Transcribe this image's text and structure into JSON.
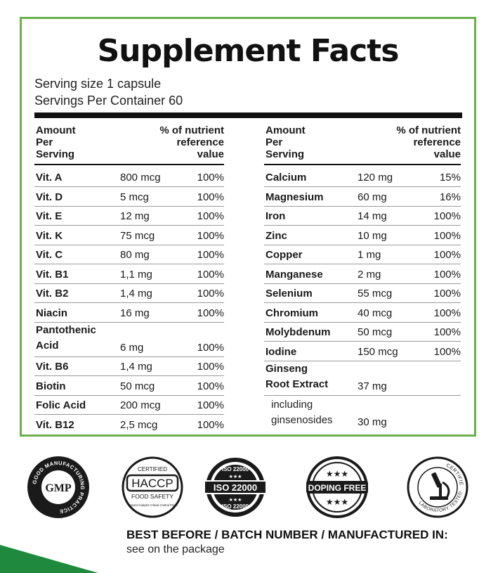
{
  "title": "Supplement Facts",
  "serving_size": "Serving size 1 capsule",
  "servings_per_container": "Servings Per Container 60",
  "header": {
    "amount": [
      "Amount",
      "Per",
      "Serving"
    ],
    "percent": [
      "% of nutrient",
      "reference",
      "value"
    ]
  },
  "left_rows": [
    {
      "name": "Vit. A",
      "amount": "800 mcg",
      "percent": "100%"
    },
    {
      "name": "Vit. D",
      "amount": "5 mcg",
      "percent": "100%"
    },
    {
      "name": "Vit. E",
      "amount": "12 mg",
      "percent": "100%"
    },
    {
      "name": "Vit. K",
      "amount": "75 mcg",
      "percent": "100%"
    },
    {
      "name": "Vit. C",
      "amount": "80 mg",
      "percent": "100%"
    },
    {
      "name": "Vit. B1",
      "amount": "1,1 mg",
      "percent": "100%"
    },
    {
      "name": "Vit. B2",
      "amount": "1,4 mg",
      "percent": "100%"
    },
    {
      "name": "Niacin",
      "amount": "16 mg",
      "percent": "100%"
    },
    {
      "name_line1": "Pantothenic",
      "name_line2": "Acid",
      "amount": "6 mg",
      "percent": "100%"
    },
    {
      "name": "Vit. B6",
      "amount": "1,4 mg",
      "percent": "100%"
    },
    {
      "name": "Biotin",
      "amount": "50 mcg",
      "percent": "100%"
    },
    {
      "name": "Folic Acid",
      "amount": "200 mcg",
      "percent": "100%"
    },
    {
      "name": "Vit. B12",
      "amount": "2,5 mcg",
      "percent": "100%"
    }
  ],
  "right_rows": [
    {
      "name": "Calcium",
      "amount": "120 mg",
      "percent": "15%"
    },
    {
      "name": "Magnesium",
      "amount": "60 mg",
      "percent": "16%"
    },
    {
      "name": "Iron",
      "amount": "14 mg",
      "percent": "100%"
    },
    {
      "name": "Zinc",
      "amount": "10 mg",
      "percent": "100%"
    },
    {
      "name": "Copper",
      "amount": "1 mg",
      "percent": "100%"
    },
    {
      "name": "Manganese",
      "amount": "2 mg",
      "percent": "100%"
    },
    {
      "name": "Selenium",
      "amount": "55 mcg",
      "percent": "100%"
    },
    {
      "name": "Chromium",
      "amount": "40 mcg",
      "percent": "100%"
    },
    {
      "name": "Molybdenum",
      "amount": "50 mcg",
      "percent": "100%"
    },
    {
      "name": "Iodine",
      "amount": "150 mcg",
      "percent": "100%"
    },
    {
      "name_line1": "Ginseng",
      "name_line2": "Root Extract",
      "amount": "37 mg",
      "percent": ""
    }
  ],
  "ginsenosides": {
    "line1": "including",
    "line2": "ginsenosides",
    "amount": "30 mg"
  },
  "badges": {
    "gmp": {
      "center": "GMP",
      "ring": "GOOD MANUFACTURING PRACTICE"
    },
    "haccp": {
      "top": "CERTIFIED",
      "main": "HACCP",
      "sub": "FOOD SAFETY",
      "ring": "Hazard Analysis Critical Control Point"
    },
    "iso": {
      "main": "ISO 22000",
      "ring_top": "ISO 22000",
      "ring_bottom": "ISO 22000"
    },
    "doping": {
      "main": "DOPING FREE"
    },
    "lab": {
      "ring_top": "CERTIFIED",
      "ring_bottom": "LABORATORY TESTED"
    }
  },
  "footer": {
    "title": "BEST BEFORE / BATCH NUMBER / MANUFACTURED IN:",
    "subtitle": "see on the package"
  },
  "colors": {
    "border_green": "#6ab04c",
    "corner_green": "#1f8a3e",
    "ink": "#1a1a1a"
  }
}
